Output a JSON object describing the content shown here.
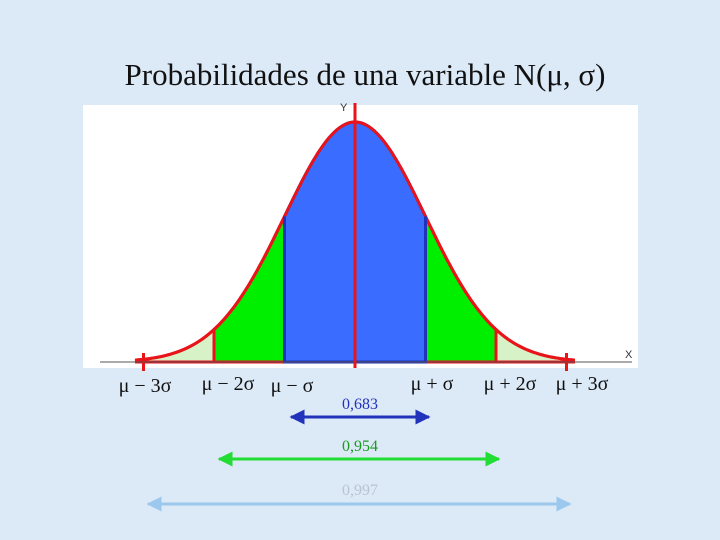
{
  "title": "Probabilidades de una variable N(μ, σ)",
  "axes": {
    "y": "Y",
    "x": "X"
  },
  "bounds": [
    "μ − 3σ",
    "μ − 2σ",
    "μ − σ",
    "μ + σ",
    "μ + 2σ",
    "μ + 3σ"
  ],
  "probabilities": [
    "0,683",
    "0,954",
    "0,997"
  ]
}
